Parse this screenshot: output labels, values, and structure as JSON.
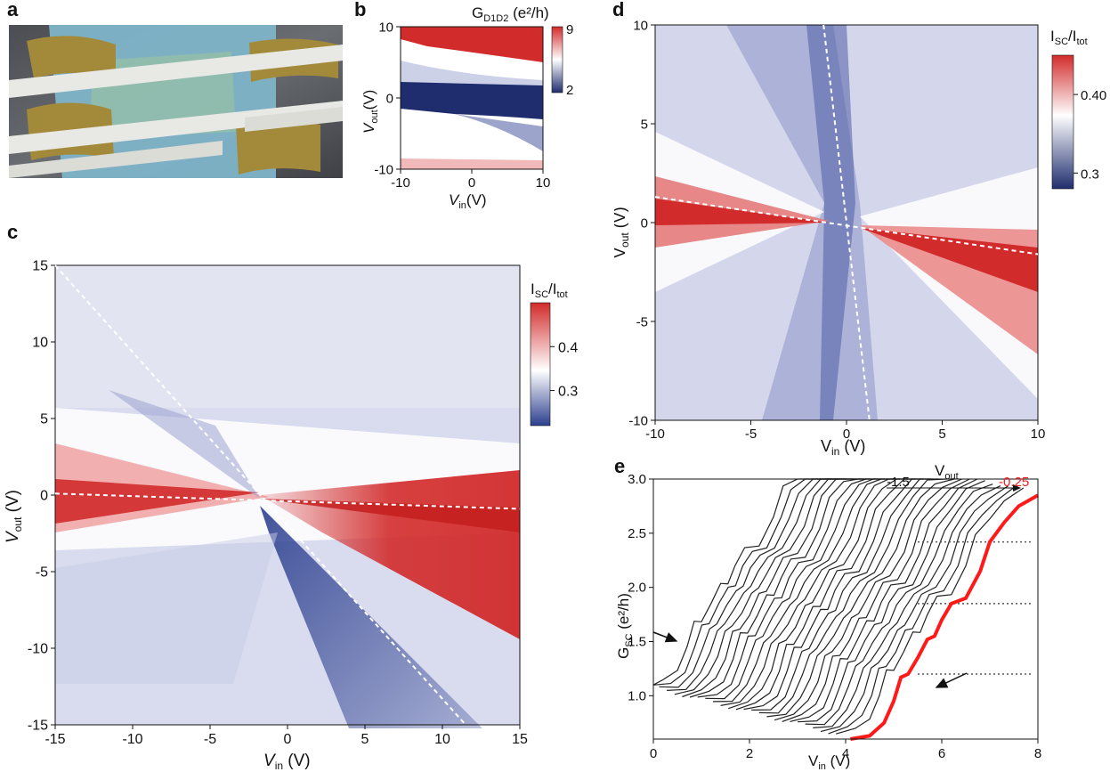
{
  "panel_labels": {
    "a": "a",
    "b": "b",
    "c": "c",
    "d": "d",
    "e": "e"
  },
  "colors": {
    "red": "#d22b2b",
    "blue": "#2c3f8f",
    "white": "#ffffff",
    "light_blue": "#d9dcef",
    "light_red": "#f3c2c2",
    "trace": "#222222",
    "highlight": "#ff1a1a"
  },
  "chart_data": [
    {
      "panel": "b",
      "type": "heatmap",
      "title": "G",
      "title_sub": "D1D2",
      "title_suffix": " (e²/h)",
      "xlabel": "V",
      "xlabel_sub": "in",
      "xlabel_suffix": "(V)",
      "ylabel": "V",
      "ylabel_sub": "out",
      "ylabel_suffix": "(V)",
      "xlim": [
        -10,
        10
      ],
      "ylim": [
        -10,
        10
      ],
      "xticks": [
        "-10",
        "0",
        "10"
      ],
      "yticks": [
        "10",
        "0",
        "-10"
      ],
      "colorbar": {
        "range": [
          2,
          9
        ],
        "ticks": [
          "9",
          "2"
        ]
      }
    },
    {
      "panel": "c",
      "type": "heatmap",
      "xlabel": "V",
      "xlabel_sub": "in",
      "xlabel_suffix": " (V)",
      "ylabel": "V",
      "ylabel_sub": "out",
      "ylabel_suffix": " (V)",
      "xlim": [
        -15,
        15
      ],
      "ylim": [
        -15,
        15
      ],
      "xticks": [
        "-15",
        "-10",
        "-5",
        "0",
        "5",
        "10",
        "15"
      ],
      "yticks": [
        "15",
        "10",
        "5",
        "0",
        "-5",
        "-10",
        "-15"
      ],
      "colorbar": {
        "label": "I",
        "label_sub1": "SC",
        "label_mid": "/I",
        "label_sub2": "tot",
        "range": [
          0.22,
          0.5
        ],
        "ticks": [
          "0.4",
          "0.3"
        ]
      },
      "dashed_lines": [
        {
          "from": [
            -15,
            15
          ],
          "to": [
            11.5,
            -15
          ]
        },
        {
          "from": [
            -15,
            0.1
          ],
          "to": [
            15,
            -0.9
          ]
        }
      ]
    },
    {
      "panel": "d",
      "type": "heatmap",
      "xlabel": "V",
      "xlabel_sub": "in",
      "xlabel_suffix": " (V)",
      "ylabel": "V",
      "ylabel_sub": "out",
      "ylabel_suffix": " (V)",
      "xlim": [
        -10,
        10
      ],
      "ylim": [
        -10,
        10
      ],
      "xticks": [
        "-10",
        "-5",
        "0",
        "5",
        "10"
      ],
      "yticks": [
        "10",
        "5",
        "0",
        "-5",
        "-10"
      ],
      "colorbar": {
        "label": "I",
        "label_sub1": "SC",
        "label_mid": "/I",
        "label_sub2": "tot",
        "range": [
          0.28,
          0.45
        ],
        "ticks": [
          "0.40",
          "0.3"
        ]
      },
      "dashed_lines": [
        {
          "from": [
            -1.2,
            10
          ],
          "to": [
            1.2,
            -10
          ]
        },
        {
          "from": [
            -10,
            1.3
          ],
          "to": [
            10,
            -1.6
          ]
        }
      ]
    },
    {
      "panel": "e",
      "type": "line",
      "xlabel": "V",
      "xlabel_sub": "in",
      "xlabel_suffix": " (V)",
      "ylabel": "G",
      "ylabel_sub": "SC",
      "ylabel_suffix": " (e²/h)",
      "xlim": [
        0,
        8
      ],
      "ylim": [
        0.6,
        3.0
      ],
      "xticks": [
        "0",
        "2",
        "4",
        "6",
        "8"
      ],
      "yticks": [
        "3.0",
        "2.5",
        "2.0",
        "1.5",
        "1.0"
      ],
      "top_axis": {
        "label": "V",
        "label_sub": "out",
        "left": "-1.5",
        "right": "-0.25"
      },
      "plateaus": [
        1.2,
        1.85,
        2.42
      ],
      "highlight_trace": {
        "x": [
          4.1,
          4.5,
          4.8,
          5.0,
          5.15,
          5.3,
          5.5,
          5.7,
          5.85,
          6.0,
          6.2,
          6.5,
          6.8,
          7.0,
          7.3,
          7.6,
          8.0
        ],
        "y": [
          0.6,
          0.63,
          0.75,
          0.95,
          1.17,
          1.2,
          1.35,
          1.52,
          1.55,
          1.7,
          1.85,
          1.9,
          2.15,
          2.42,
          2.6,
          2.75,
          2.85
        ]
      }
    }
  ]
}
